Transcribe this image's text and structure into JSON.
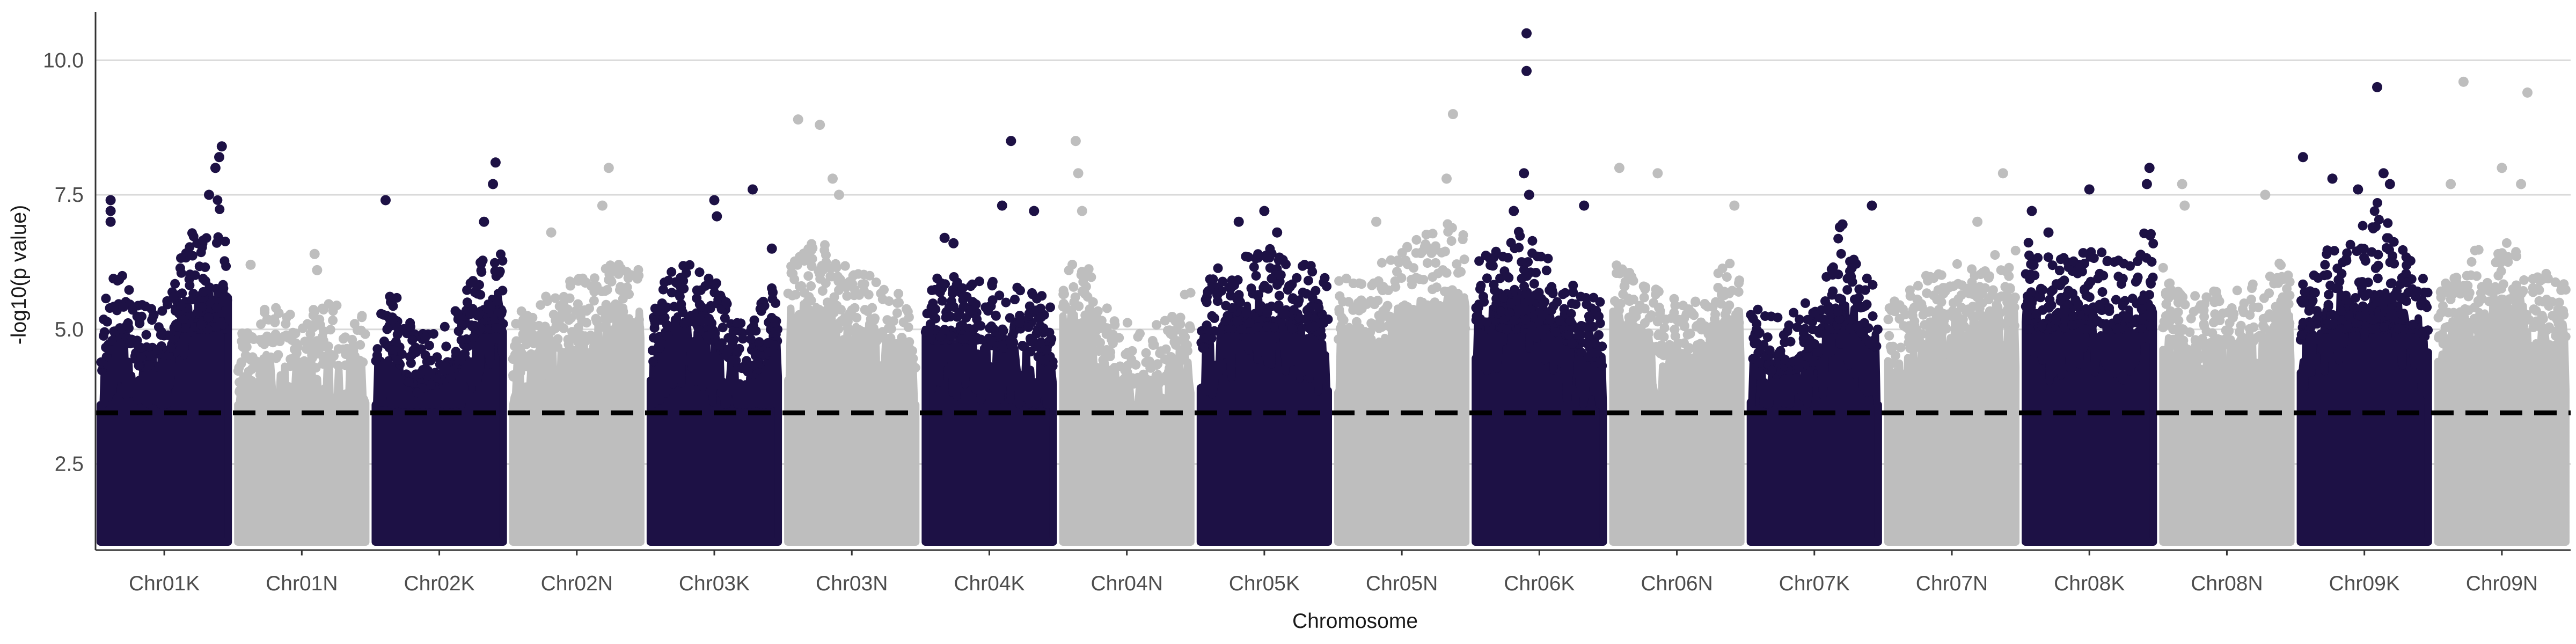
{
  "chart_data": {
    "type": "scatter",
    "subtype": "manhattan",
    "title": "",
    "xlabel": "Chromosome",
    "ylabel": "-log10(p value)",
    "ylim": [
      0.9,
      10.9
    ],
    "yticks": [
      2.5,
      5.0,
      7.5,
      10.0
    ],
    "ytick_labels": [
      "2.5",
      "5.0",
      "7.5",
      "10.0"
    ],
    "grid": "horizontal major gridlines",
    "legend": "none",
    "threshold": {
      "value": 3.45,
      "style": "dashed",
      "color": "#000000"
    },
    "colors": {
      "dark": "#1d1145",
      "light": "#bebebe",
      "grid": "#d9d9d9",
      "axis": "#333333"
    },
    "categories": [
      "Chr01K",
      "Chr01N",
      "Chr02K",
      "Chr02N",
      "Chr03K",
      "Chr03N",
      "Chr04K",
      "Chr04N",
      "Chr05K",
      "Chr05N",
      "Chr06K",
      "Chr06N",
      "Chr07K",
      "Chr07N",
      "Chr08K",
      "Chr08N",
      "Chr09K",
      "Chr09N"
    ],
    "series": [
      {
        "chromosome": "Chr01K",
        "color": "dark",
        "profile": [
          [
            0.0,
            5.3
          ],
          [
            0.15,
            6.3
          ],
          [
            0.3,
            5.5
          ],
          [
            0.5,
            5.5
          ],
          [
            0.65,
            6.5
          ],
          [
            0.8,
            7.2
          ],
          [
            0.9,
            7.6
          ],
          [
            1.0,
            7.3
          ]
        ],
        "peaks": [
          [
            0.08,
            7.4
          ],
          [
            0.08,
            7.2
          ],
          [
            0.08,
            7.0
          ],
          [
            0.85,
            7.5
          ],
          [
            0.9,
            8.0
          ],
          [
            0.93,
            8.2
          ],
          [
            0.95,
            8.4
          ]
        ]
      },
      {
        "chromosome": "Chr01N",
        "color": "light",
        "profile": [
          [
            0.0,
            5.0
          ],
          [
            0.3,
            5.6
          ],
          [
            0.5,
            5.3
          ],
          [
            0.7,
            5.6
          ],
          [
            1.0,
            5.3
          ]
        ],
        "peaks": [
          [
            0.6,
            6.4
          ],
          [
            0.62,
            6.1
          ],
          [
            0.1,
            6.2
          ]
        ]
      },
      {
        "chromosome": "Chr02K",
        "color": "dark",
        "profile": [
          [
            0.0,
            5.6
          ],
          [
            0.1,
            5.9
          ],
          [
            0.3,
            5.0
          ],
          [
            0.6,
            5.3
          ],
          [
            0.8,
            6.2
          ],
          [
            1.0,
            6.8
          ]
        ],
        "peaks": [
          [
            0.08,
            7.4
          ],
          [
            0.92,
            7.7
          ],
          [
            0.94,
            8.1
          ],
          [
            0.85,
            7.0
          ]
        ]
      },
      {
        "chromosome": "Chr02N",
        "color": "light",
        "profile": [
          [
            0.0,
            5.3
          ],
          [
            0.3,
            5.8
          ],
          [
            0.6,
            6.0
          ],
          [
            1.0,
            6.5
          ]
        ],
        "peaks": [
          [
            0.75,
            8.0
          ],
          [
            0.7,
            7.3
          ],
          [
            0.3,
            6.8
          ]
        ]
      },
      {
        "chromosome": "Chr03K",
        "color": "dark",
        "profile": [
          [
            0.0,
            5.3
          ],
          [
            0.1,
            6.0
          ],
          [
            0.3,
            6.3
          ],
          [
            0.6,
            5.7
          ],
          [
            0.8,
            5.3
          ],
          [
            1.0,
            6.0
          ]
        ],
        "peaks": [
          [
            0.5,
            7.4
          ],
          [
            0.52,
            7.1
          ],
          [
            0.8,
            7.6
          ],
          [
            0.95,
            6.5
          ]
        ]
      },
      {
        "chromosome": "Chr03N",
        "color": "light",
        "profile": [
          [
            0.0,
            6.3
          ],
          [
            0.15,
            6.6
          ],
          [
            0.3,
            6.6
          ],
          [
            0.5,
            6.2
          ],
          [
            0.8,
            5.8
          ],
          [
            1.0,
            5.4
          ]
        ],
        "peaks": [
          [
            0.08,
            8.9
          ],
          [
            0.25,
            8.8
          ],
          [
            0.35,
            7.8
          ],
          [
            0.4,
            7.5
          ]
        ]
      },
      {
        "chromosome": "Chr04K",
        "color": "dark",
        "profile": [
          [
            0.0,
            6.0
          ],
          [
            0.2,
            6.0
          ],
          [
            0.5,
            5.9
          ],
          [
            0.8,
            5.8
          ],
          [
            1.0,
            5.5
          ]
        ],
        "peaks": [
          [
            0.6,
            7.3
          ],
          [
            0.67,
            8.5
          ],
          [
            0.85,
            7.2
          ],
          [
            0.15,
            6.7
          ],
          [
            0.22,
            6.6
          ]
        ]
      },
      {
        "chromosome": "Chr04N",
        "color": "light",
        "profile": [
          [
            0.0,
            6.3
          ],
          [
            0.2,
            6.2
          ],
          [
            0.4,
            5.2
          ],
          [
            0.7,
            5.0
          ],
          [
            1.0,
            5.8
          ]
        ],
        "peaks": [
          [
            0.1,
            8.5
          ],
          [
            0.12,
            7.9
          ],
          [
            0.15,
            7.2
          ]
        ]
      },
      {
        "chromosome": "Chr05K",
        "color": "dark",
        "profile": [
          [
            0.0,
            5.8
          ],
          [
            0.2,
            6.3
          ],
          [
            0.4,
            6.5
          ],
          [
            0.6,
            6.5
          ],
          [
            0.8,
            6.3
          ],
          [
            1.0,
            6.0
          ]
        ],
        "peaks": [
          [
            0.3,
            7.0
          ],
          [
            0.5,
            7.2
          ],
          [
            0.6,
            6.8
          ]
        ]
      },
      {
        "chromosome": "Chr05N",
        "color": "light",
        "profile": [
          [
            0.0,
            6.0
          ],
          [
            0.2,
            6.0
          ],
          [
            0.5,
            6.5
          ],
          [
            0.75,
            6.9
          ],
          [
            1.0,
            7.5
          ]
        ],
        "peaks": [
          [
            0.9,
            9.0
          ],
          [
            0.85,
            7.8
          ],
          [
            0.3,
            7.0
          ]
        ]
      },
      {
        "chromosome": "Chr06K",
        "color": "dark",
        "profile": [
          [
            0.0,
            6.5
          ],
          [
            0.2,
            6.5
          ],
          [
            0.4,
            7.0
          ],
          [
            0.6,
            6.2
          ],
          [
            0.8,
            5.8
          ],
          [
            1.0,
            5.5
          ]
        ],
        "peaks": [
          [
            0.4,
            10.5
          ],
          [
            0.4,
            9.8
          ],
          [
            0.38,
            7.9
          ],
          [
            0.42,
            7.5
          ],
          [
            0.85,
            7.3
          ],
          [
            0.3,
            7.2
          ]
        ]
      },
      {
        "chromosome": "Chr06N",
        "color": "light",
        "profile": [
          [
            0.0,
            6.3
          ],
          [
            0.3,
            5.8
          ],
          [
            0.6,
            5.5
          ],
          [
            1.0,
            6.5
          ]
        ],
        "peaks": [
          [
            0.05,
            8.0
          ],
          [
            0.35,
            7.9
          ],
          [
            0.95,
            7.3
          ]
        ]
      },
      {
        "chromosome": "Chr07K",
        "color": "dark",
        "profile": [
          [
            0.0,
            5.6
          ],
          [
            0.2,
            5.3
          ],
          [
            0.5,
            5.6
          ],
          [
            0.7,
            6.8
          ],
          [
            0.9,
            6.0
          ],
          [
            1.0,
            5.8
          ]
        ],
        "peaks": [
          [
            0.7,
            6.9
          ],
          [
            0.72,
            6.95
          ],
          [
            0.95,
            7.3
          ]
        ]
      },
      {
        "chromosome": "Chr07N",
        "color": "light",
        "profile": [
          [
            0.0,
            5.5
          ],
          [
            0.3,
            6.0
          ],
          [
            0.6,
            6.3
          ],
          [
            1.0,
            6.5
          ]
        ],
        "peaks": [
          [
            0.7,
            7.0
          ],
          [
            0.9,
            7.9
          ]
        ]
      },
      {
        "chromosome": "Chr08K",
        "color": "dark",
        "profile": [
          [
            0.0,
            6.7
          ],
          [
            0.2,
            6.3
          ],
          [
            0.5,
            6.5
          ],
          [
            0.8,
            6.3
          ],
          [
            1.0,
            7.2
          ]
        ],
        "peaks": [
          [
            0.05,
            7.2
          ],
          [
            0.18,
            6.8
          ],
          [
            0.5,
            7.6
          ],
          [
            0.97,
            8.0
          ],
          [
            0.95,
            7.7
          ]
        ]
      },
      {
        "chromosome": "Chr08N",
        "color": "light",
        "profile": [
          [
            0.0,
            6.2
          ],
          [
            0.2,
            5.6
          ],
          [
            0.5,
            5.8
          ],
          [
            0.8,
            6.0
          ],
          [
            1.0,
            6.5
          ]
        ],
        "peaks": [
          [
            0.15,
            7.7
          ],
          [
            0.17,
            7.3
          ],
          [
            0.8,
            7.5
          ]
        ]
      },
      {
        "chromosome": "Chr09K",
        "color": "dark",
        "profile": [
          [
            0.0,
            6.0
          ],
          [
            0.2,
            6.5
          ],
          [
            0.45,
            6.8
          ],
          [
            0.6,
            7.6
          ],
          [
            0.8,
            6.5
          ],
          [
            1.0,
            6.0
          ]
        ],
        "peaks": [
          [
            0.02,
            8.2
          ],
          [
            0.25,
            7.8
          ],
          [
            0.45,
            7.6
          ],
          [
            0.6,
            9.5
          ],
          [
            0.65,
            7.9
          ],
          [
            0.7,
            7.7
          ]
        ]
      },
      {
        "chromosome": "Chr09N",
        "color": "light",
        "profile": [
          [
            0.0,
            5.8
          ],
          [
            0.2,
            6.3
          ],
          [
            0.5,
            7.0
          ],
          [
            0.7,
            6.3
          ],
          [
            1.0,
            6.0
          ]
        ],
        "peaks": [
          [
            0.2,
            9.6
          ],
          [
            0.7,
            9.4
          ],
          [
            0.5,
            8.0
          ],
          [
            0.65,
            7.7
          ],
          [
            0.1,
            7.7
          ]
        ]
      }
    ]
  }
}
